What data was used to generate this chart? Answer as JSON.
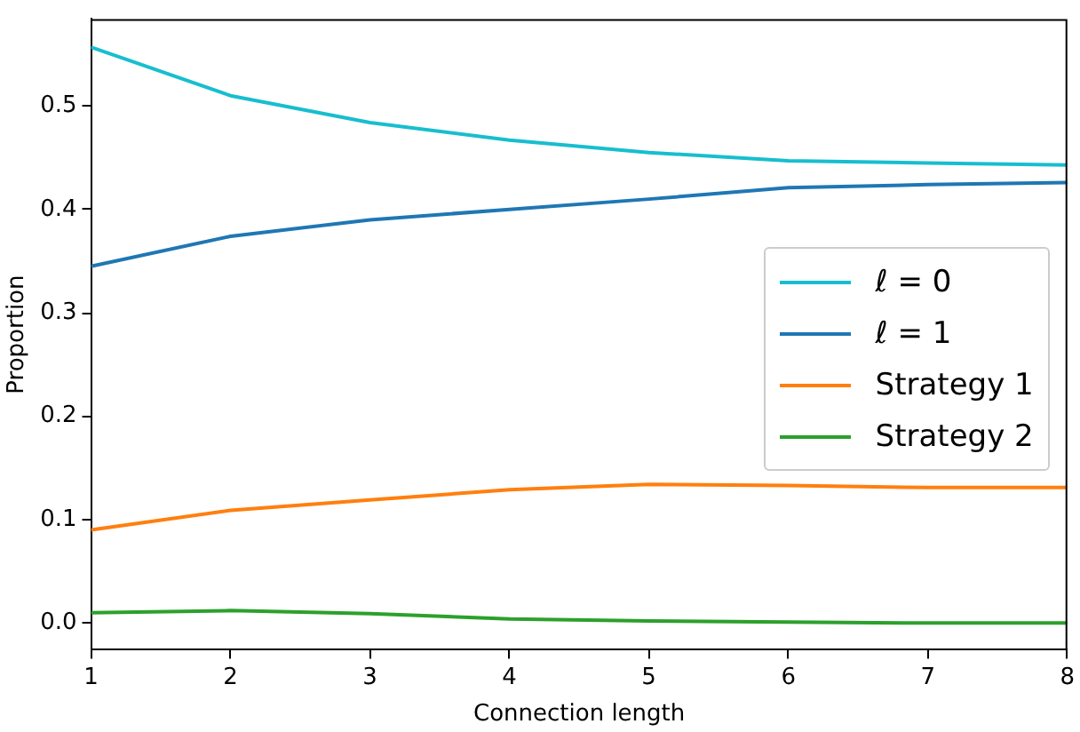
{
  "chart_data": {
    "type": "line",
    "xlabel": "Connection length",
    "ylabel": "Proportion",
    "x": [
      1,
      2,
      3,
      4,
      5,
      6,
      7,
      8
    ],
    "xlim": [
      1,
      8
    ],
    "xticks": [
      1,
      2,
      3,
      4,
      5,
      6,
      7,
      8
    ],
    "ylim": [
      -0.026,
      0.584
    ],
    "yticks": [
      {
        "value": 0,
        "label": "0.0"
      },
      0.1,
      0.2,
      0.3,
      0.4,
      0.5
    ],
    "grid": false,
    "legend": "right",
    "marker": "none",
    "line_style": "solid",
    "series": [
      {
        "name": "ℓ = 0",
        "color": "#17becf",
        "values": [
          0.557,
          0.51,
          0.484,
          0.467,
          0.455,
          0.447,
          0.445,
          0.443
        ]
      },
      {
        "name": "ℓ = 1",
        "color": "#1f77b4",
        "values": [
          0.345,
          0.374,
          0.39,
          0.4,
          0.41,
          0.421,
          0.424,
          0.426
        ]
      },
      {
        "name": "Strategy 1",
        "color": "#ff7f0e",
        "values": [
          0.09,
          0.109,
          0.119,
          0.129,
          0.134,
          0.133,
          0.131,
          0.131
        ]
      },
      {
        "name": "Strategy 2",
        "color": "#2ca02c",
        "values": [
          0.01,
          0.012,
          0.009,
          0.004,
          0.002,
          0.001,
          0.0,
          0.0
        ]
      }
    ]
  }
}
